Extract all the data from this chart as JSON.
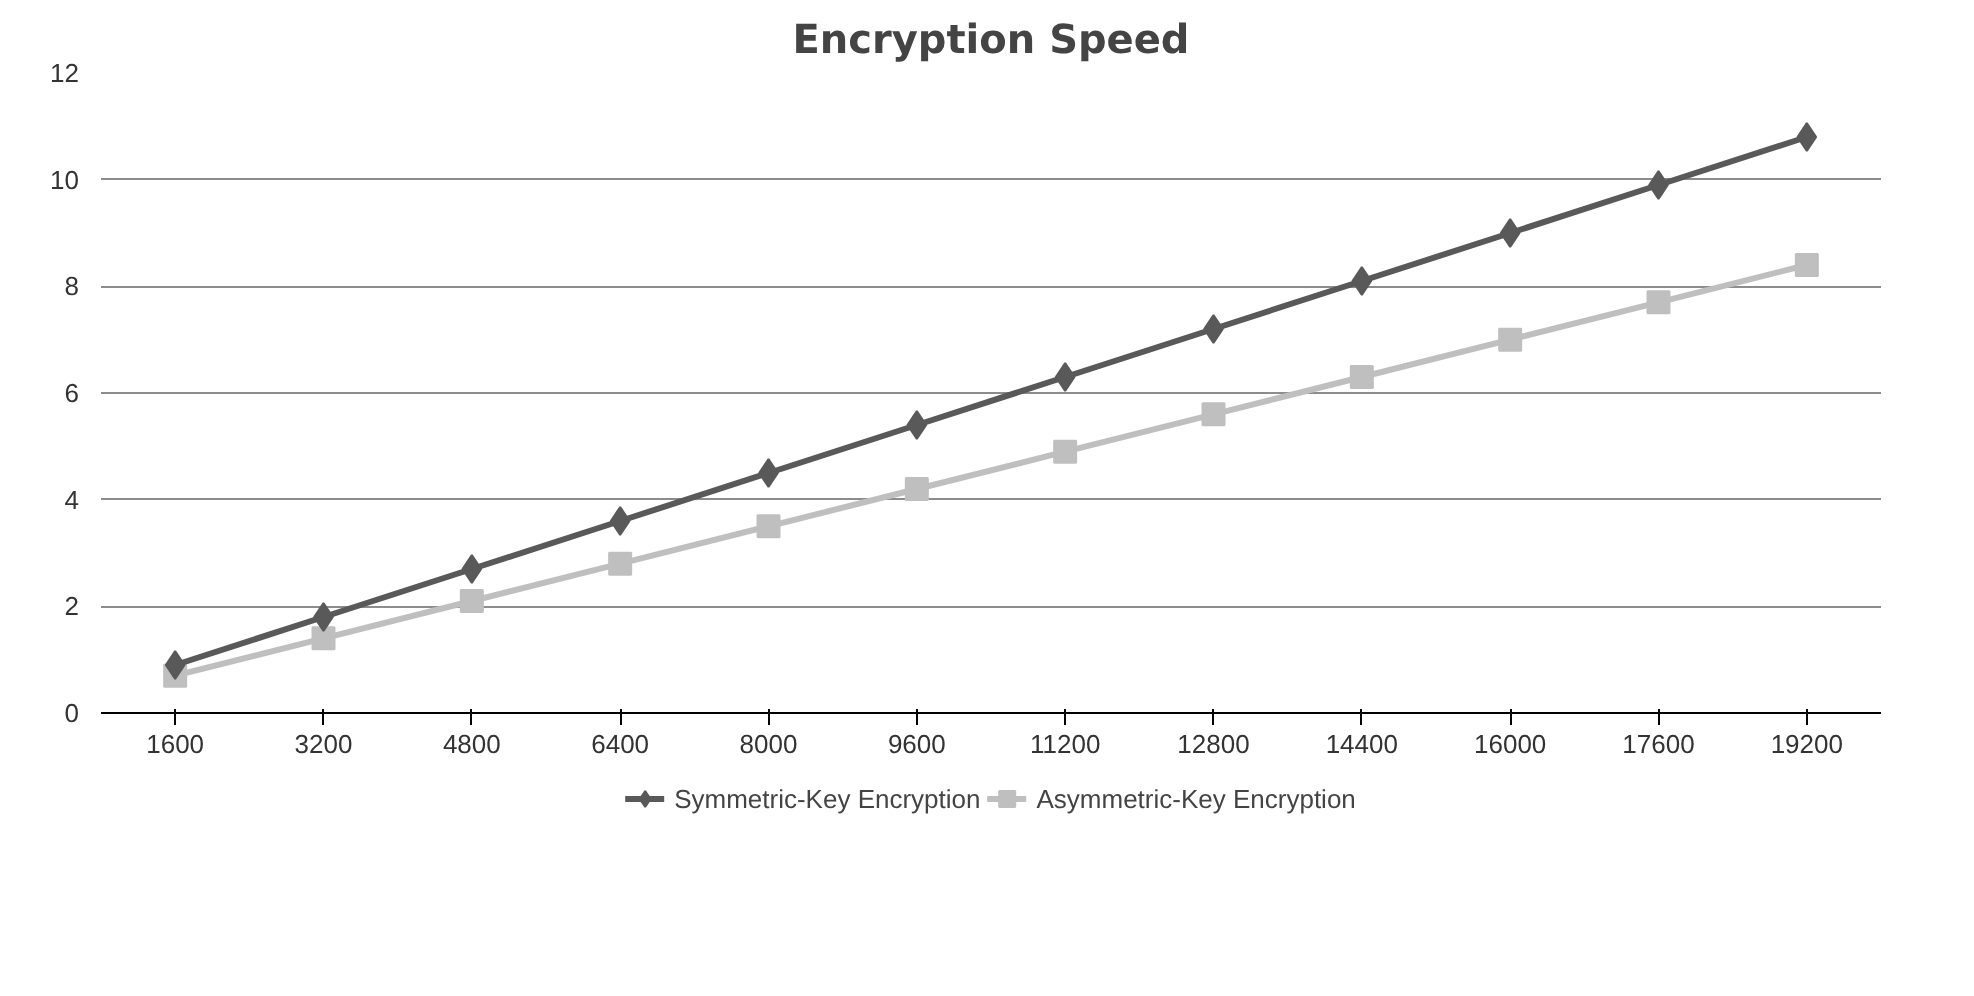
{
  "chart_data": {
    "type": "line",
    "title": "Encryption Speed",
    "categories": [
      "1600",
      "3200",
      "4800",
      "6400",
      "8000",
      "9600",
      "11200",
      "12800",
      "14400",
      "16000",
      "17600",
      "19200"
    ],
    "series": [
      {
        "name": "Symmetric-Key Encryption",
        "color": "#595959",
        "marker": "diamond",
        "values": [
          0.9,
          1.8,
          2.7,
          3.6,
          4.5,
          5.4,
          6.3,
          7.2,
          8.1,
          9.0,
          9.9,
          10.8
        ]
      },
      {
        "name": "Asymmetric-Key Encryption",
        "color": "#bfbfbf",
        "marker": "square",
        "values": [
          0.7,
          1.4,
          2.1,
          2.8,
          3.5,
          4.2,
          4.9,
          5.6,
          6.3,
          7.0,
          7.7,
          8.4
        ]
      }
    ],
    "ylim": [
      0,
      12
    ],
    "yticks": [
      0,
      2,
      4,
      6,
      8,
      10,
      12
    ],
    "grid": "y",
    "legend": "bottom",
    "line_style": "solid"
  }
}
